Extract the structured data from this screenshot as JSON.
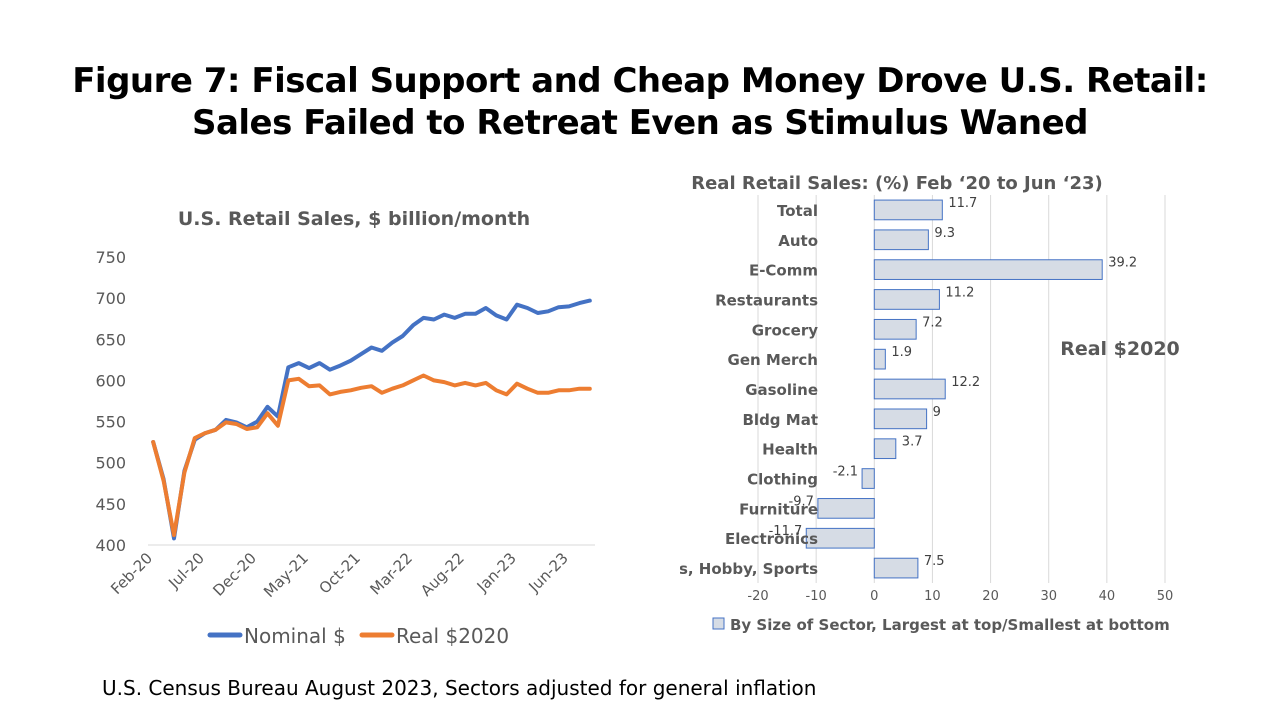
{
  "title": {
    "line1": "Figure 7: Fiscal Support and Cheap Money Drove U.S. Retail:",
    "line2": "Sales Failed to Retreat Even as Stimulus Waned"
  },
  "footer": "U.S. Census Bureau August 2023, Sectors adjusted for general inflation",
  "colors": {
    "nominal": "#4472C4",
    "real": "#ED7D31",
    "bar_fill": "#D6DCE5",
    "bar_stroke": "#4472C4",
    "text": "#595959"
  },
  "chart_data": [
    {
      "type": "line",
      "title": "U.S. Retail Sales, $ billion/month",
      "ylim": [
        400,
        750
      ],
      "yticks": [
        "750",
        "700",
        "650",
        "600",
        "550",
        "500",
        "450",
        "400"
      ],
      "ytick_values": [
        750,
        700,
        650,
        600,
        550,
        500,
        450,
        400
      ],
      "xtick_labels": [
        "Feb-20",
        "Jul-20",
        "Dec-20",
        "May-21",
        "Oct-21",
        "Mar-22",
        "Aug-22",
        "Jan-23",
        "Jun-23"
      ],
      "xtick_indices": [
        0,
        5,
        10,
        15,
        20,
        25,
        30,
        35,
        40
      ],
      "series": [
        {
          "name": "Nominal $",
          "values": [
            525,
            480,
            408,
            490,
            528,
            536,
            540,
            552,
            549,
            543,
            550,
            568,
            556,
            616,
            621,
            615,
            621,
            613,
            618,
            624,
            632,
            640,
            636,
            646,
            654,
            667,
            676,
            674,
            680,
            676,
            681,
            681,
            688,
            679,
            674,
            692,
            688,
            682,
            684,
            689,
            690,
            694,
            697
          ]
        },
        {
          "name": "Real $2020",
          "values": [
            525,
            478,
            412,
            488,
            530,
            536,
            540,
            549,
            547,
            541,
            543,
            560,
            545,
            600,
            602,
            593,
            594,
            583,
            586,
            588,
            591,
            593,
            585,
            590,
            594,
            600,
            606,
            600,
            598,
            594,
            597,
            594,
            597,
            588,
            583,
            596,
            590,
            585,
            585,
            588,
            588,
            590,
            590
          ]
        }
      ]
    },
    {
      "type": "bar",
      "orientation": "horizontal",
      "title": "Real Retail Sales: (%) Feb ‘20 to Jun ‘23)",
      "annotation": "Real $2020",
      "legend": "By Size of Sector, Largest at top/Smallest at bottom",
      "categories": [
        "Total",
        "Auto",
        "E-Comm",
        "Restaurants",
        "Grocery",
        "Gen Merch",
        "Gasoline",
        "Bldg Mat",
        "Health",
        "Clothing",
        "Furniture",
        "Electronics",
        "Books, Hobby, Sports"
      ],
      "values": [
        11.7,
        9.3,
        39.2,
        11.2,
        7.2,
        1.9,
        12.2,
        9,
        3.7,
        -2.1,
        -9.7,
        -11.7,
        7.5
      ],
      "value_labels": [
        "11.7",
        "9.3",
        "39.2",
        "11.2",
        "7.2",
        "1.9",
        "12.2",
        "9",
        "3.7",
        "-2.1",
        "-9.7",
        "-11.7",
        "7.5"
      ],
      "xlim": [
        -20,
        50
      ],
      "xticks": [
        "-20",
        "-10",
        "0",
        "10",
        "20",
        "30",
        "40",
        "50"
      ],
      "xtick_values": [
        -20,
        -10,
        0,
        10,
        20,
        30,
        40,
        50
      ]
    }
  ]
}
